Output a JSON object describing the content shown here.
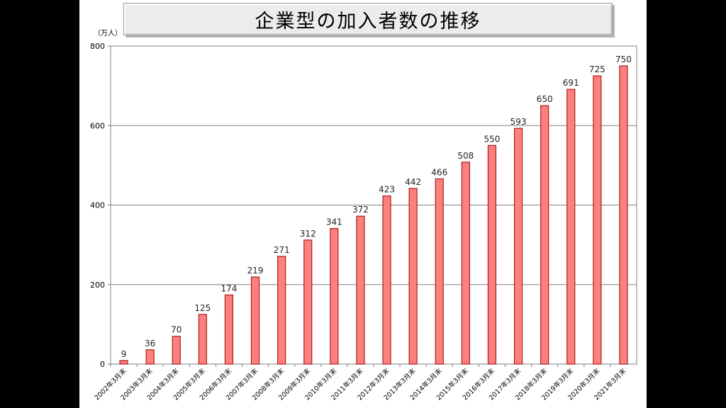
{
  "title": "企業型の加入者数の推移",
  "unit": "（万人）",
  "colors": {
    "bar_fill": "#ff7f7f",
    "bar_stroke": "#a82020"
  },
  "chart_data": {
    "type": "bar",
    "title": "企業型の加入者数の推移",
    "ylabel": "（万人）",
    "xlabel": "",
    "ylim": [
      0,
      800
    ],
    "yticks": [
      0,
      200,
      400,
      600,
      800
    ],
    "grid": true,
    "categories": [
      "2002年3月末",
      "2003年3月末",
      "2004年3月末",
      "2005年3月末",
      "2006年3月末",
      "2007年3月末",
      "2008年3月末",
      "2009年3月末",
      "2010年3月末",
      "2011年3月末",
      "2012年3月末",
      "2013年3月末",
      "2014年3月末",
      "2015年3月末",
      "2016年3月末",
      "2017年3月末",
      "2018年3月末",
      "2019年3月末",
      "2020年3月末",
      "2021年3月末"
    ],
    "values": [
      9,
      36,
      70,
      125,
      174,
      219,
      271,
      312,
      341,
      372,
      423,
      442,
      466,
      508,
      550,
      593,
      650,
      691,
      725,
      750
    ]
  }
}
